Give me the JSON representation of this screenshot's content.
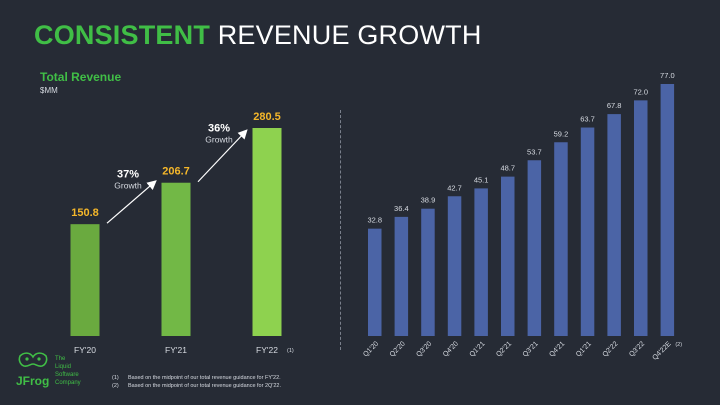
{
  "header": {
    "title_accent": "CONSISTENT",
    "title_rest": "REVENUE GROWTH"
  },
  "chart_data": [
    {
      "type": "bar",
      "title": "Total Revenue",
      "ylabel": "$MM",
      "categories": [
        "FY'20",
        "FY'21",
        "FY'22"
      ],
      "values": [
        150.8,
        206.7,
        280.5
      ],
      "value_labels": [
        "150.8",
        "206.7",
        "280.5"
      ],
      "footnote_refs": [
        "",
        "",
        "(1)"
      ],
      "colors": [
        "#6aaa3f",
        "#72b846",
        "#8ed24f"
      ],
      "label_color": "#f5b72a",
      "ylim": [
        0,
        300
      ],
      "growth_annotations": [
        {
          "from": 0,
          "to": 1,
          "percent": "37%",
          "label": "Growth"
        },
        {
          "from": 1,
          "to": 2,
          "percent": "36%",
          "label": "Growth"
        }
      ]
    },
    {
      "type": "bar",
      "categories": [
        "Q1'20",
        "Q2'20",
        "Q3'20",
        "Q4'20",
        "Q1'21",
        "Q2'21",
        "Q3'21",
        "Q4'21",
        "Q1'21",
        "Q2'22",
        "Q3'22",
        "Q4'22E"
      ],
      "values": [
        32.8,
        36.4,
        38.9,
        42.7,
        45.1,
        48.7,
        53.7,
        59.2,
        63.7,
        67.8,
        72.0,
        77.0
      ],
      "value_labels": [
        "32.8",
        "36.4",
        "38.9",
        "42.7",
        "45.1",
        "48.7",
        "53.7",
        "59.2",
        "63.7",
        "67.8",
        "72.0",
        "77.0"
      ],
      "footnote_refs": [
        "",
        "",
        "",
        "",
        "",
        "",
        "",
        "",
        "",
        "",
        "",
        "(2)"
      ],
      "color": "#4b64a6",
      "ylim": [
        0,
        80
      ]
    }
  ],
  "footer": {
    "logo_text": "JFrog",
    "tagline": [
      "The",
      "Liquid",
      "Software",
      "Company"
    ],
    "footnotes": [
      {
        "mark": "(1)",
        "text": "Based on the midpoint of our total revenue guidance for FY'22."
      },
      {
        "mark": "(2)",
        "text": "Based on the midpoint of our total revenue guidance for 2Q'22."
      }
    ]
  }
}
